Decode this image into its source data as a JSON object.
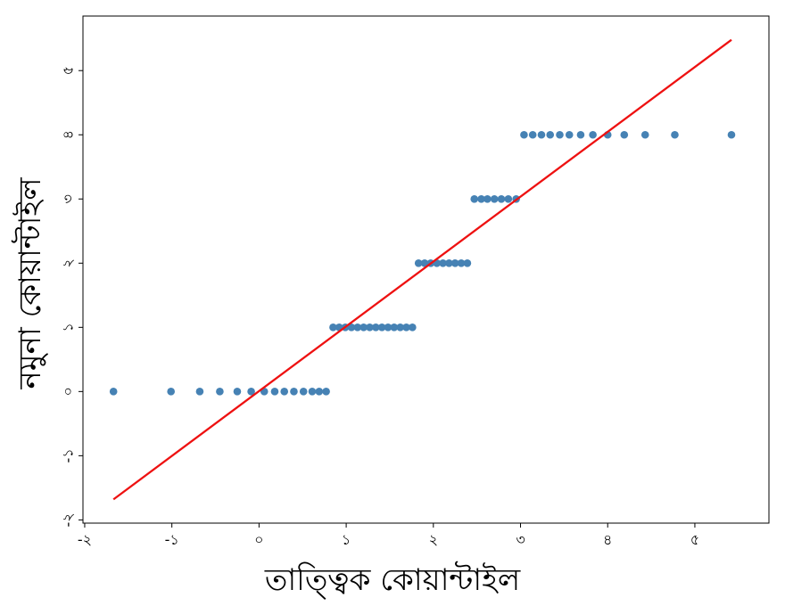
{
  "chart_data": {
    "type": "scatter",
    "title": "",
    "xlabel": "তাত্ত্বিক কোয়ান্টাইল",
    "ylabel": "নমুনা কোয়ান্টাইল",
    "xlim": [
      -2.02,
      5.85
    ],
    "ylim": [
      -2.05,
      5.85
    ],
    "x_ticks": [
      {
        "value": -2,
        "label": "-২"
      },
      {
        "value": -1,
        "label": "-১"
      },
      {
        "value": 0,
        "label": "০"
      },
      {
        "value": 1,
        "label": "১"
      },
      {
        "value": 2,
        "label": "২"
      },
      {
        "value": 3,
        "label": "৩"
      },
      {
        "value": 4,
        "label": "৪"
      },
      {
        "value": 5,
        "label": "৫"
      }
    ],
    "y_ticks": [
      {
        "value": -2,
        "label": "-২"
      },
      {
        "value": -1,
        "label": "-১"
      },
      {
        "value": 0,
        "label": "০"
      },
      {
        "value": 1,
        "label": "১"
      },
      {
        "value": 2,
        "label": "২"
      },
      {
        "value": 3,
        "label": "৩"
      },
      {
        "value": 4,
        "label": "৪"
      },
      {
        "value": 5,
        "label": "৫"
      }
    ],
    "grid": false,
    "legend": "none",
    "series": [
      {
        "kind": "points",
        "color": "#4682b4",
        "points": [
          {
            "x": -1.67,
            "y": 0
          },
          {
            "x": -1.01,
            "y": 0
          },
          {
            "x": -0.68,
            "y": 0
          },
          {
            "x": -0.45,
            "y": 0
          },
          {
            "x": -0.25,
            "y": 0
          },
          {
            "x": -0.09,
            "y": 0
          },
          {
            "x": 0.06,
            "y": 0
          },
          {
            "x": 0.18,
            "y": 0
          },
          {
            "x": 0.29,
            "y": 0
          },
          {
            "x": 0.4,
            "y": 0
          },
          {
            "x": 0.51,
            "y": 0
          },
          {
            "x": 0.61,
            "y": 0
          },
          {
            "x": 0.69,
            "y": 0
          },
          {
            "x": 0.77,
            "y": 0
          },
          {
            "x": 0.85,
            "y": 1
          },
          {
            "x": 0.92,
            "y": 1
          },
          {
            "x": 0.99,
            "y": 1
          },
          {
            "x": 1.06,
            "y": 1
          },
          {
            "x": 1.13,
            "y": 1
          },
          {
            "x": 1.2,
            "y": 1
          },
          {
            "x": 1.27,
            "y": 1
          },
          {
            "x": 1.34,
            "y": 1
          },
          {
            "x": 1.41,
            "y": 1
          },
          {
            "x": 1.48,
            "y": 1
          },
          {
            "x": 1.55,
            "y": 1
          },
          {
            "x": 1.62,
            "y": 1
          },
          {
            "x": 1.69,
            "y": 1
          },
          {
            "x": 1.76,
            "y": 1
          },
          {
            "x": 1.83,
            "y": 2
          },
          {
            "x": 1.9,
            "y": 2
          },
          {
            "x": 1.97,
            "y": 2
          },
          {
            "x": 2.04,
            "y": 2
          },
          {
            "x": 2.11,
            "y": 2
          },
          {
            "x": 2.18,
            "y": 2
          },
          {
            "x": 2.25,
            "y": 2
          },
          {
            "x": 2.32,
            "y": 2
          },
          {
            "x": 2.39,
            "y": 2
          },
          {
            "x": 2.47,
            "y": 3
          },
          {
            "x": 2.55,
            "y": 3
          },
          {
            "x": 2.62,
            "y": 3
          },
          {
            "x": 2.7,
            "y": 3
          },
          {
            "x": 2.78,
            "y": 3
          },
          {
            "x": 2.86,
            "y": 3
          },
          {
            "x": 2.95,
            "y": 3
          },
          {
            "x": 3.04,
            "y": 4
          },
          {
            "x": 3.14,
            "y": 4
          },
          {
            "x": 3.24,
            "y": 4
          },
          {
            "x": 3.34,
            "y": 4
          },
          {
            "x": 3.45,
            "y": 4
          },
          {
            "x": 3.56,
            "y": 4
          },
          {
            "x": 3.69,
            "y": 4
          },
          {
            "x": 3.83,
            "y": 4
          },
          {
            "x": 4.0,
            "y": 4
          },
          {
            "x": 4.19,
            "y": 4
          },
          {
            "x": 4.43,
            "y": 4
          },
          {
            "x": 4.77,
            "y": 4
          },
          {
            "x": 5.42,
            "y": 4
          }
        ]
      },
      {
        "kind": "line",
        "color": "#ee1111",
        "points": [
          {
            "x": -1.67,
            "y": -1.68
          },
          {
            "x": 5.42,
            "y": 5.48
          }
        ]
      }
    ]
  }
}
